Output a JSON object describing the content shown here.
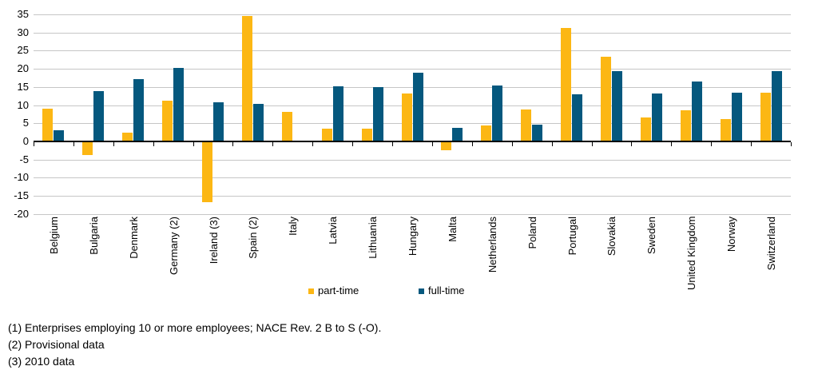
{
  "chart_data": {
    "type": "bar",
    "title": "",
    "xlabel": "",
    "ylabel": "",
    "categories": [
      "Belgium",
      "Bulgaria",
      "Denmark",
      "Germany (2)",
      "Ireland (3)",
      "Spain (2)",
      "Italy",
      "Latvia",
      "Lithuania",
      "Hungary",
      "Malta",
      "Netherlands",
      "Poland",
      "Portugal",
      "Slovakia",
      "Sweden",
      "United Kingdom",
      "Norway",
      "Switzerland"
    ],
    "series": [
      {
        "name": "part-time",
        "color": "#FCB714",
        "values": [
          9.0,
          -3.5,
          2.5,
          11.3,
          -16.5,
          34.5,
          8.2,
          3.5,
          3.5,
          13.3,
          -2.3,
          4.3,
          8.7,
          31.3,
          23.4,
          6.6,
          8.6,
          6.2,
          13.5
        ]
      },
      {
        "name": "full-time",
        "color": "#05587E",
        "values": [
          3.1,
          13.9,
          17.2,
          20.3,
          10.7,
          10.3,
          null,
          15.2,
          14.9,
          19.0,
          3.7,
          15.5,
          4.6,
          12.9,
          19.4,
          13.1,
          16.4,
          13.4,
          19.4
        ]
      }
    ],
    "ylim": [
      -20,
      35
    ],
    "yticks": [
      35,
      30,
      25,
      20,
      15,
      10,
      5,
      0,
      -5,
      -10,
      -15,
      -20
    ],
    "grid": true,
    "legend_position": "bottom"
  },
  "footnotes": [
    "(1) Enterprises employing 10 or more employees; NACE Rev. 2 B to S (-O).",
    "(2) Provisional data",
    "(3) 2010 data"
  ],
  "colors": {
    "part_time": "#FCB714",
    "full_time": "#05587E",
    "gridline": "#C6C6C6",
    "axis": "#000000",
    "background": "#FFFFFF"
  }
}
